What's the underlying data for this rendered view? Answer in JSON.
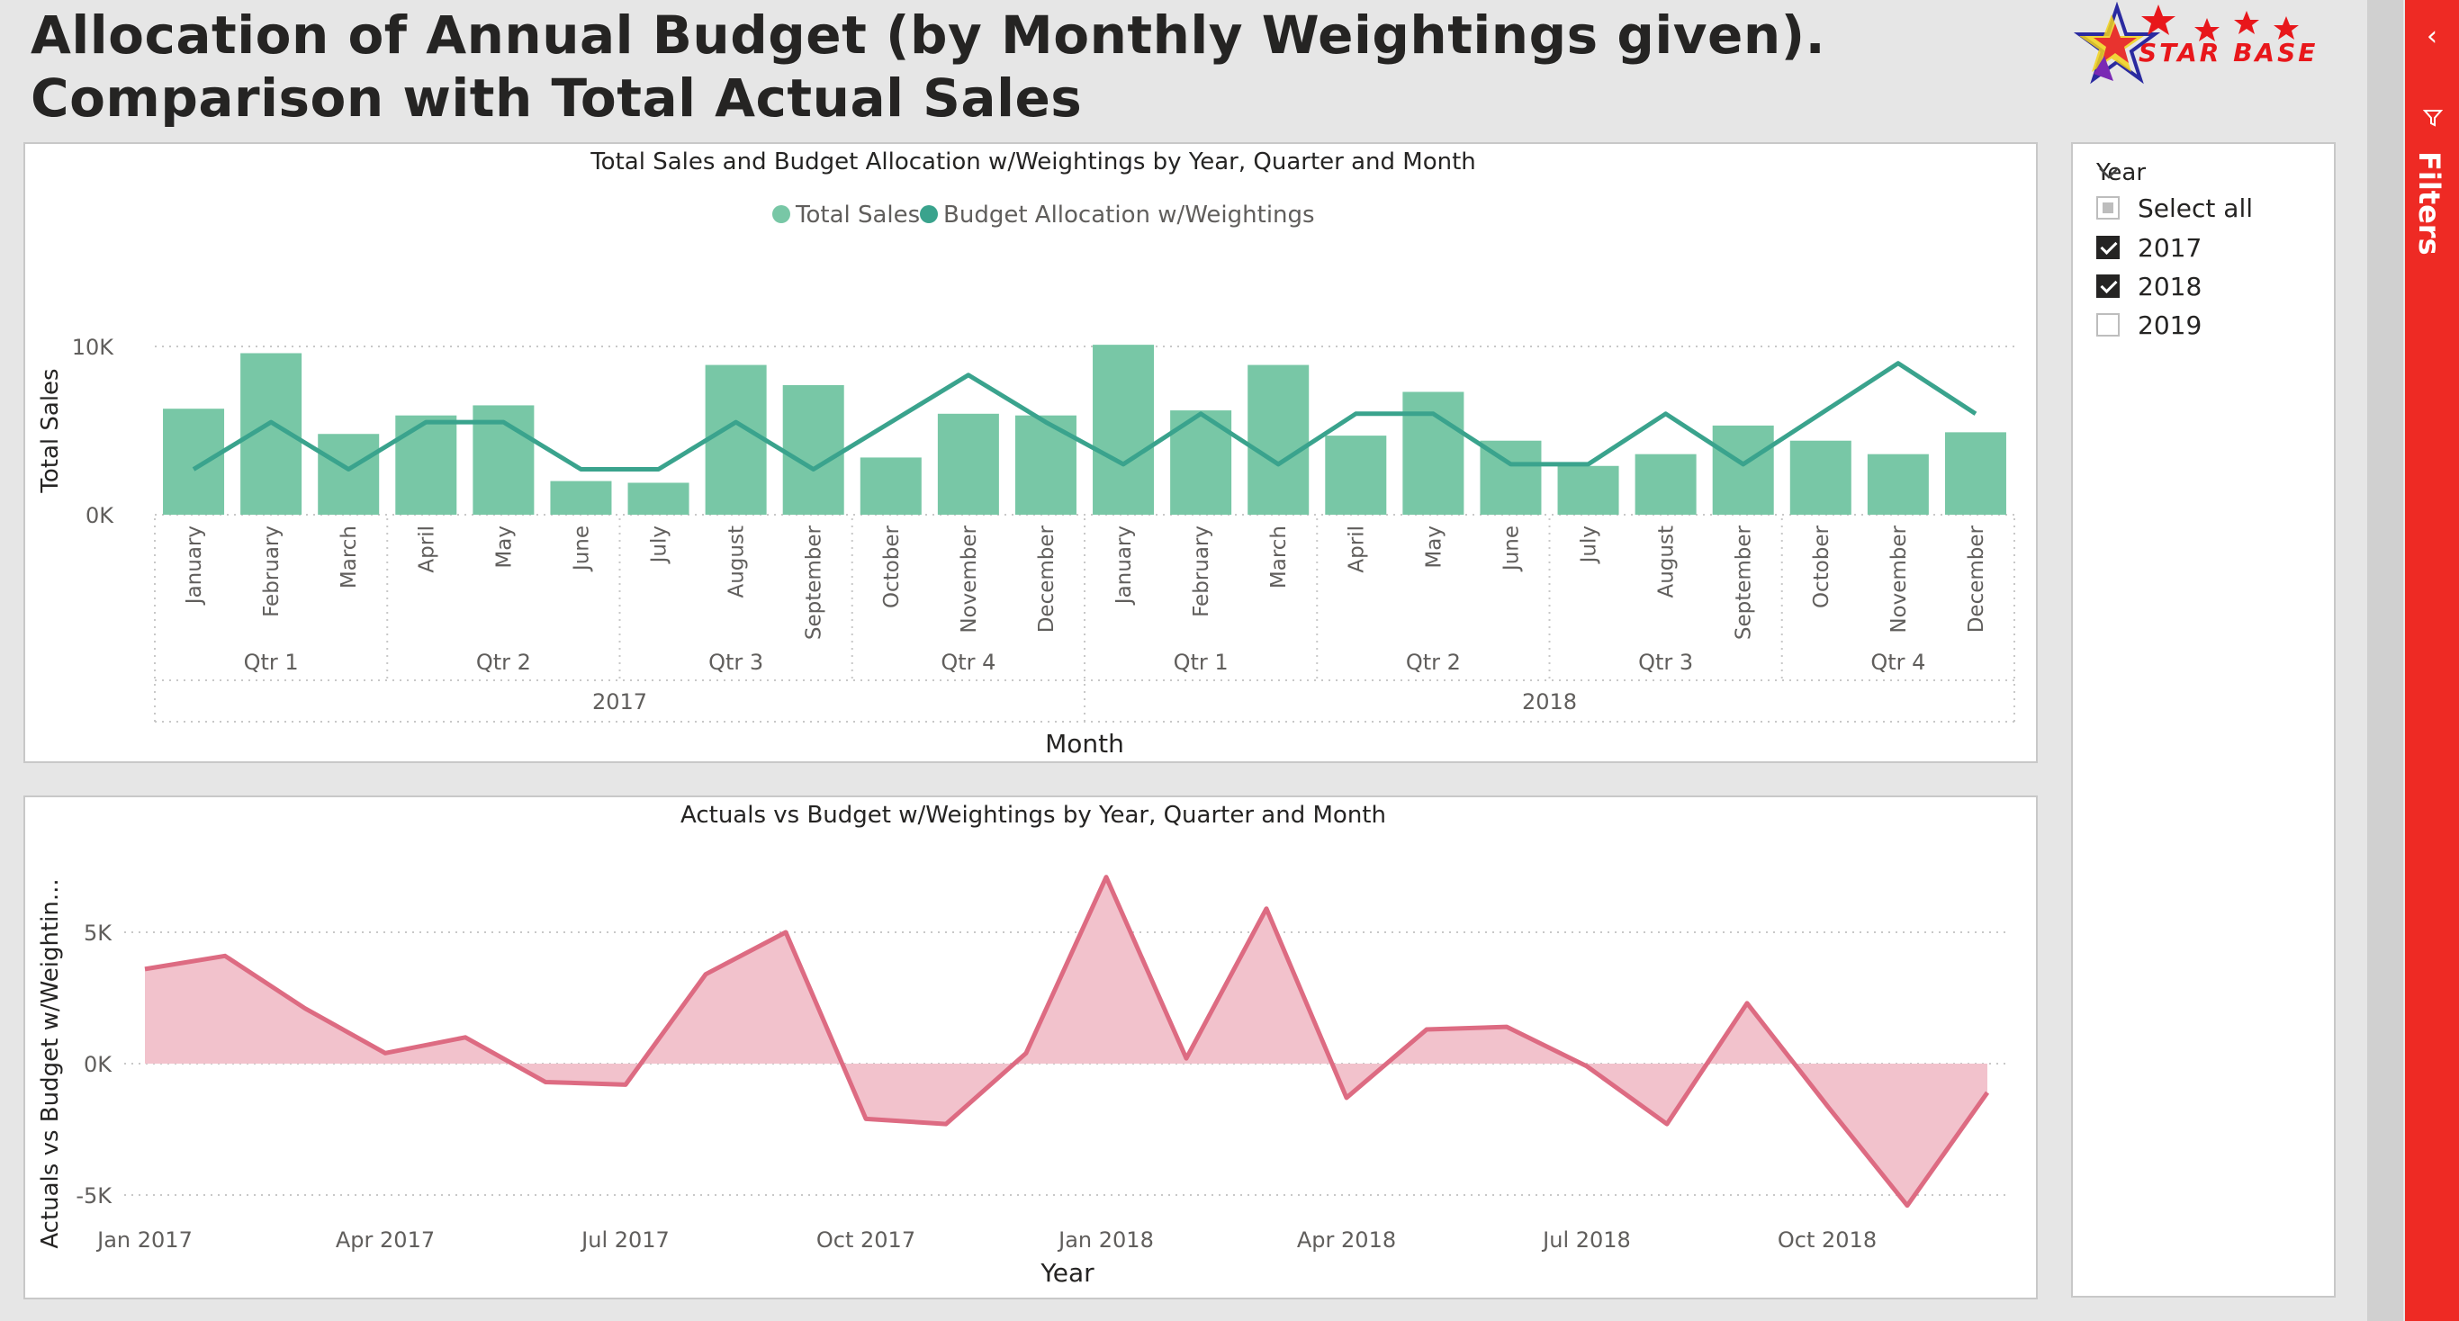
{
  "report": {
    "title_line1": "Allocation of Annual Budget (by Monthly Weightings given).",
    "title_line2": "Comparison with Total Actual Sales",
    "logo_text": "STAR BASE"
  },
  "filters_pane": {
    "label": "Filters",
    "collapse_icon": "chevron-left-icon",
    "filter_icon": "funnel-icon"
  },
  "slicer": {
    "header": "Year",
    "items": [
      {
        "label": "Select all",
        "state": "partial"
      },
      {
        "label": "2017",
        "state": "checked"
      },
      {
        "label": "2018",
        "state": "checked"
      },
      {
        "label": "2019",
        "state": "unchecked"
      }
    ]
  },
  "colors": {
    "bar": "#78c7a6",
    "budget_line": "#3aa38d",
    "variance_line": "#dd6b82",
    "variance_fill": "#f2c2cc",
    "filters_pane": "#ee2a24"
  },
  "chart_data": [
    {
      "type": "bar",
      "title": "Total Sales and Budget Allocation w/Weightings by Year, Quarter and Month",
      "xlabel": "Month",
      "ylabel": "Total Sales",
      "legend": "top-center",
      "grid": true,
      "yticks": [
        "0K",
        "10K"
      ],
      "ylim": [
        0,
        11000
      ],
      "categories": [
        "January",
        "February",
        "March",
        "April",
        "May",
        "June",
        "July",
        "August",
        "September",
        "October",
        "November",
        "December",
        "January",
        "February",
        "March",
        "April",
        "May",
        "June",
        "July",
        "August",
        "September",
        "October",
        "November",
        "December"
      ],
      "quarters": [
        {
          "label": "Qtr 1",
          "year": "2017"
        },
        {
          "label": "Qtr 2",
          "year": "2017"
        },
        {
          "label": "Qtr 3",
          "year": "2017"
        },
        {
          "label": "Qtr 4",
          "year": "2017"
        },
        {
          "label": "Qtr 1",
          "year": "2018"
        },
        {
          "label": "Qtr 2",
          "year": "2018"
        },
        {
          "label": "Qtr 3",
          "year": "2018"
        },
        {
          "label": "Qtr 4",
          "year": "2018"
        }
      ],
      "years": [
        "2017",
        "2018"
      ],
      "series": [
        {
          "name": "Total Sales",
          "type": "bar",
          "values": [
            6300,
            9600,
            4800,
            5900,
            6500,
            2000,
            1900,
            8900,
            7700,
            3400,
            6000,
            5900,
            10100,
            6200,
            8900,
            4700,
            7300,
            4400,
            2900,
            3600,
            5300,
            4400,
            3600,
            4900
          ]
        },
        {
          "name": "Budget Allocation w/Weightings",
          "type": "line",
          "values": [
            2700,
            5500,
            2700,
            5500,
            5500,
            2700,
            2700,
            5500,
            2700,
            5500,
            8300,
            5500,
            3000,
            6000,
            3000,
            6000,
            6000,
            3000,
            3000,
            6000,
            3000,
            6000,
            9000,
            6000
          ]
        }
      ]
    },
    {
      "type": "area",
      "title": "Actuals vs Budget w/Weightings by Year, Quarter and Month",
      "xlabel": "Year",
      "ylabel": "Actuals vs Budget w/Weightin...",
      "grid": true,
      "yticks": [
        "-5K",
        "0K",
        "5K"
      ],
      "ylim": [
        -5500,
        7500
      ],
      "xticks": [
        "Jan 2017",
        "Apr 2017",
        "Jul 2017",
        "Oct 2017",
        "Jan 2018",
        "Apr 2018",
        "Jul 2018",
        "Oct 2018"
      ],
      "x": [
        "2017-01",
        "2017-02",
        "2017-03",
        "2017-04",
        "2017-05",
        "2017-06",
        "2017-07",
        "2017-08",
        "2017-09",
        "2017-10",
        "2017-11",
        "2017-12",
        "2018-01",
        "2018-02",
        "2018-03",
        "2018-04",
        "2018-05",
        "2018-06",
        "2018-07",
        "2018-08",
        "2018-09",
        "2018-10",
        "2018-11",
        "2018-12"
      ],
      "series": [
        {
          "name": "Actuals vs Budget w/Weightings",
          "values": [
            3600,
            4100,
            2100,
            400,
            1000,
            -700,
            -800,
            3400,
            5000,
            -2100,
            -2300,
            400,
            7100,
            200,
            5900,
            -1300,
            1300,
            1400,
            -100,
            -2300,
            2300,
            -1600,
            -5400,
            -1100
          ]
        }
      ]
    }
  ]
}
